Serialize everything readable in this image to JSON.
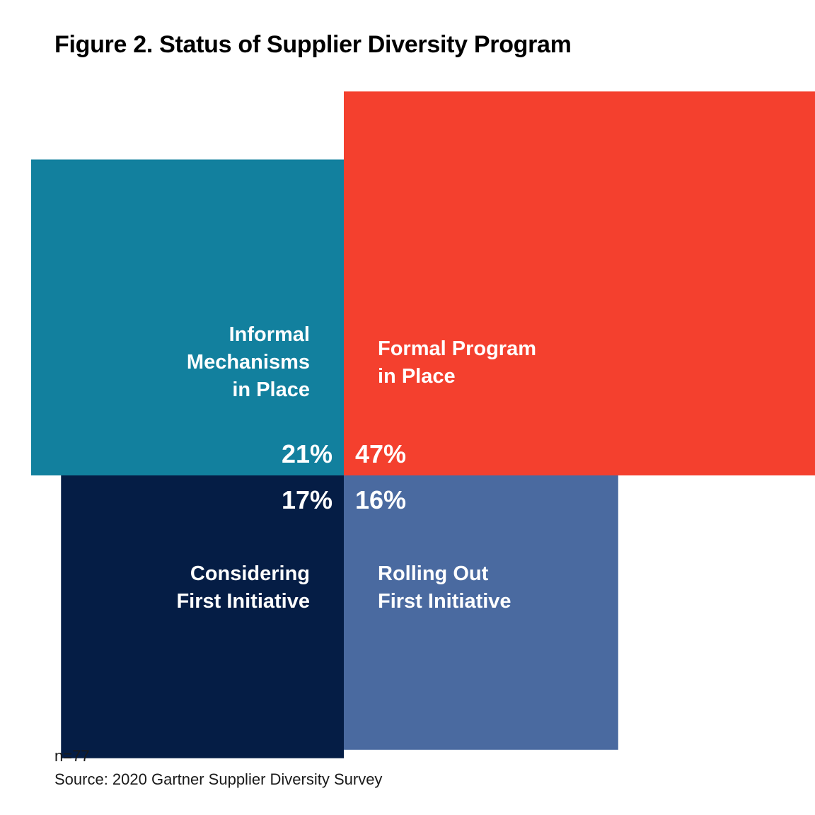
{
  "title": "Figure 2. Status of Supplier Diversity Program",
  "chart_data": {
    "type": "treemap",
    "title": "Figure 2. Status of Supplier Diversity Program",
    "unit": "%",
    "segments": [
      {
        "label_lines": [
          "Informal",
          "Mechanisms",
          "in Place"
        ],
        "value": 21,
        "value_label": "21%",
        "color": "#12809E"
      },
      {
        "label_lines": [
          "Formal Program",
          "in Place"
        ],
        "value": 47,
        "value_label": "47%",
        "color": "#F4402E"
      },
      {
        "label_lines": [
          "Considering",
          "First Initiative"
        ],
        "value": 17,
        "value_label": "17%",
        "color": "#051D45"
      },
      {
        "label_lines": [
          "Rolling Out",
          "First Initiative"
        ],
        "value": 16,
        "value_label": "16%",
        "color": "#4A6AA0"
      }
    ]
  },
  "footer": {
    "n": "n=77",
    "source": "Source: 2020 Gartner Supplier Diversity Survey"
  }
}
